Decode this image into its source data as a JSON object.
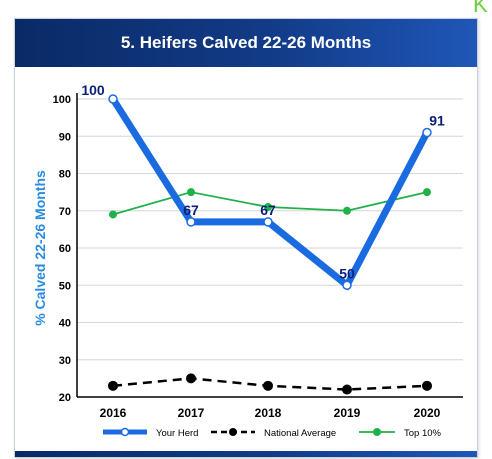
{
  "corner_letter": "K",
  "chart_data": {
    "type": "line",
    "title": "5. Heifers Calved 22-26 Months",
    "ylabel": "% Calved 22-26 Months",
    "xlabel": "",
    "categories": [
      "2016",
      "2017",
      "2018",
      "2019",
      "2020"
    ],
    "ylim": [
      20,
      100
    ],
    "yticks": [
      20,
      30,
      40,
      50,
      60,
      70,
      80,
      90,
      100
    ],
    "grid": true,
    "legend_position": "bottom",
    "series": [
      {
        "name": "Your Herd",
        "values": [
          100,
          67,
          67,
          50,
          91
        ],
        "color": "#1a6be0",
        "style": "solid-thick",
        "data_labels": true
      },
      {
        "name": "National Average",
        "values": [
          23,
          25,
          23,
          22,
          23
        ],
        "color": "#000000",
        "style": "dashed",
        "data_labels": false
      },
      {
        "name": "Top 10%",
        "values": [
          69,
          75,
          71,
          70,
          75
        ],
        "color": "#21b14a",
        "style": "solid-thin",
        "data_labels": false
      }
    ],
    "label_color": "#0b1f7a",
    "ylabel_color": "#2a8be0"
  }
}
